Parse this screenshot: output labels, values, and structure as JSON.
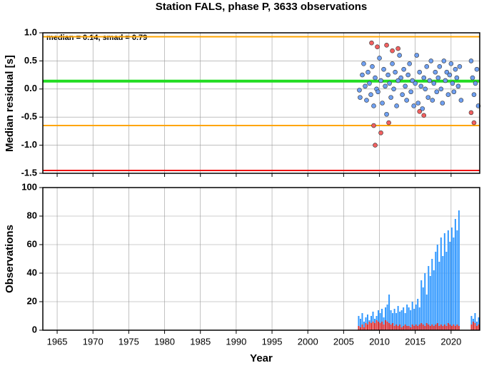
{
  "chart_data": [
    {
      "type": "scatter",
      "title": "Station FALS, phase P, 3633 observations",
      "y_label": "Median residual [s]",
      "annotation": "median = 0.14, smad = 0.79",
      "xlim": [
        1963,
        2024
      ],
      "ylim": [
        -1.5,
        1.0
      ],
      "yticks": [
        {
          "value": 1,
          "label": "1.0"
        },
        0.5,
        {
          "value": 0,
          "label": "0.0"
        },
        -0.5,
        {
          "value": -1,
          "label": "-1.0"
        },
        -1.5
      ],
      "grid": true,
      "reference_lines": [
        {
          "value": 0.93,
          "color": "#ffa500"
        },
        {
          "value": -0.65,
          "color": "#ffa500"
        },
        {
          "value": 0.14,
          "color": "#22dd22"
        },
        {
          "value": -1.45,
          "color": "#ee1111"
        }
      ],
      "series": [
        {
          "color": "#6fa0f2",
          "x": [
            2007.2,
            2007.3,
            2007.6,
            2007.8,
            2008.0,
            2008.2,
            2008.4,
            2008.6,
            2008.8,
            2009.0,
            2009.2,
            2009.4,
            2009.6,
            2009.8,
            2010.0,
            2010.2,
            2010.4,
            2010.6,
            2010.8,
            2011.0,
            2011.2,
            2011.4,
            2011.6,
            2011.8,
            2012.0,
            2012.2,
            2012.4,
            2012.6,
            2012.8,
            2013.0,
            2013.2,
            2013.4,
            2013.6,
            2013.8,
            2014.0,
            2014.2,
            2014.4,
            2014.6,
            2014.8,
            2015.0,
            2015.2,
            2015.4,
            2015.6,
            2015.8,
            2016.0,
            2016.2,
            2016.4,
            2016.6,
            2016.8,
            2017.0,
            2017.2,
            2017.4,
            2017.6,
            2017.8,
            2018.0,
            2018.2,
            2018.4,
            2018.6,
            2018.8,
            2019.0,
            2019.2,
            2019.4,
            2019.6,
            2019.8,
            2020.0,
            2020.2,
            2020.4,
            2020.6,
            2020.8,
            2021.0,
            2021.2,
            2021.4,
            2022.8,
            2023.0,
            2023.2,
            2023.4,
            2023.6,
            2023.8
          ],
          "values": [
            -0.02,
            -0.15,
            0.25,
            0.45,
            0.05,
            -0.2,
            0.3,
            0.1,
            -0.1,
            0.4,
            -0.3,
            0.2,
            0.0,
            -0.05,
            0.55,
            0.15,
            -0.25,
            0.35,
            0.05,
            -0.45,
            0.25,
            0.1,
            -0.15,
            0.45,
            0.0,
            0.3,
            -0.3,
            0.15,
            0.6,
            0.2,
            -0.1,
            0.35,
            0.05,
            -0.2,
            0.25,
            0.45,
            -0.05,
            0.15,
            -0.3,
            0.1,
            0.6,
            -0.25,
            0.3,
            0.05,
            -0.35,
            0.2,
            0.0,
            0.4,
            -0.15,
            0.15,
            0.5,
            -0.2,
            0.1,
            0.3,
            -0.05,
            0.2,
            0.4,
            0.0,
            -0.25,
            0.5,
            0.15,
            0.3,
            -0.1,
            0.25,
            0.45,
            0.1,
            -0.05,
            0.35,
            0.2,
            0.05,
            0.4,
            -0.2,
            0.5,
            0.2,
            -0.1,
            0.1,
            0.35,
            -0.3
          ]
        },
        {
          "color": "#f26060",
          "x": [
            2008.9,
            2009.2,
            2009.4,
            2009.7,
            2010.2,
            2011.0,
            2011.3,
            2011.8,
            2012.6,
            2015.6,
            2016.2,
            2022.8,
            2023.2
          ],
          "values": [
            0.82,
            -0.65,
            -1.0,
            0.75,
            -0.78,
            0.78,
            -0.6,
            0.68,
            0.72,
            -0.4,
            -0.47,
            -0.42,
            -0.6
          ]
        }
      ]
    },
    {
      "type": "bar",
      "x_label": "Year",
      "y_label": "Observations",
      "xlim": [
        1963,
        2024
      ],
      "xticks": [
        1965,
        1970,
        1975,
        1980,
        1985,
        1990,
        1995,
        2000,
        2005,
        2010,
        2015,
        2020
      ],
      "ylim": [
        0,
        100
      ],
      "yticks": [
        0,
        20,
        40,
        60,
        80,
        100
      ],
      "grid": true,
      "x": [
        2007,
        2007.25,
        2007.5,
        2007.75,
        2008,
        2008.25,
        2008.5,
        2008.75,
        2009,
        2009.25,
        2009.5,
        2009.75,
        2010,
        2010.25,
        2010.5,
        2010.75,
        2011,
        2011.25,
        2011.5,
        2011.75,
        2012,
        2012.25,
        2012.5,
        2012.75,
        2013,
        2013.25,
        2013.5,
        2013.75,
        2014,
        2014.25,
        2014.5,
        2014.75,
        2015,
        2015.25,
        2015.5,
        2015.75,
        2016,
        2016.25,
        2016.5,
        2016.75,
        2017,
        2017.25,
        2017.5,
        2017.75,
        2018,
        2018.25,
        2018.5,
        2018.75,
        2019,
        2019.25,
        2019.5,
        2019.75,
        2020,
        2020.25,
        2020.5,
        2020.75,
        2021,
        2021.25,
        2021.5,
        2021.75,
        2022,
        2022.25,
        2022.5,
        2022.75,
        2023,
        2023.25,
        2023.5,
        2023.75
      ],
      "series": [
        {
          "color": "#3399ff",
          "values": [
            10,
            8,
            12,
            6,
            9,
            11,
            7,
            10,
            13,
            8,
            10,
            14,
            12,
            15,
            9,
            16,
            18,
            25,
            14,
            12,
            15,
            12,
            17,
            13,
            14,
            16,
            12,
            18,
            16,
            14,
            20,
            15,
            18,
            22,
            16,
            35,
            30,
            40,
            25,
            45,
            38,
            50,
            42,
            55,
            60,
            48,
            65,
            52,
            68,
            55,
            70,
            62,
            72,
            65,
            78,
            70,
            84,
            0,
            0,
            0,
            0,
            0,
            0,
            10,
            8,
            12,
            6,
            9
          ]
        },
        {
          "color": "#dd3333",
          "values": [
            3,
            2,
            4,
            2,
            5,
            4,
            6,
            5,
            6,
            5,
            7,
            6,
            5,
            6,
            4,
            7,
            6,
            5,
            4,
            5,
            3,
            4,
            3,
            4,
            2,
            3,
            4,
            3,
            3,
            2,
            4,
            3,
            4,
            3,
            4,
            5,
            4,
            3,
            5,
            4,
            3,
            4,
            3,
            4,
            5,
            3,
            4,
            3,
            4,
            3,
            5,
            4,
            3,
            4,
            3,
            4,
            3,
            0,
            0,
            0,
            0,
            0,
            0,
            4,
            6,
            5,
            3,
            4
          ]
        }
      ]
    }
  ]
}
